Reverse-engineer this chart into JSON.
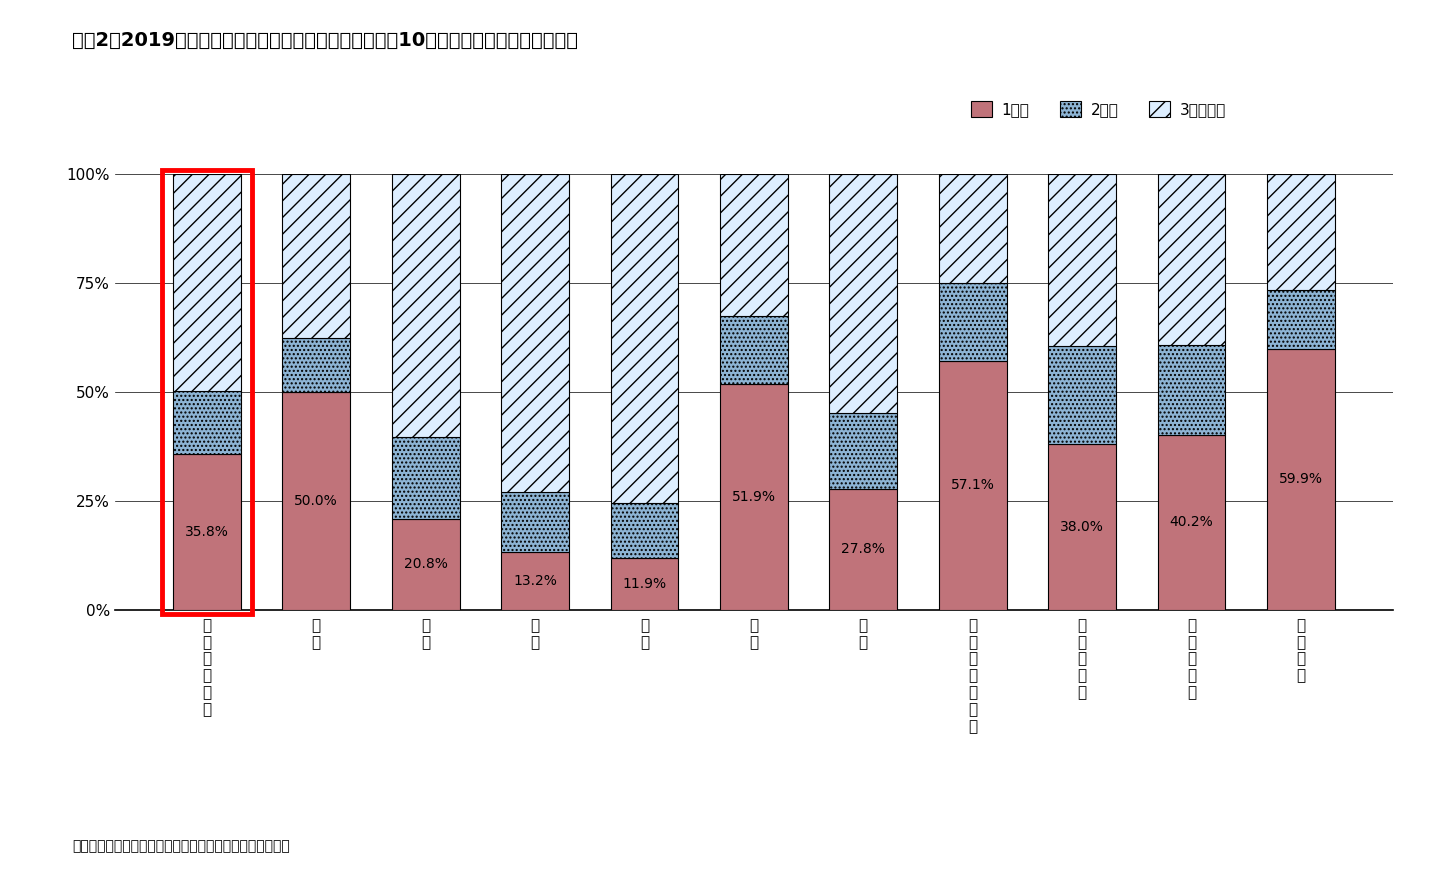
{
  "title": "図表2　2019年の国籍・地域別の訪日回数の割合（上位10か国・地域と全国籍・地域）",
  "categories": [
    "全国籍・地域",
    "中国",
    "韓国",
    "台湾",
    "香港",
    "米国",
    "タイ",
    "オーストラリア",
    "フィリピン",
    "マレーシア",
    "ベトナム"
  ],
  "first_visit": [
    35.8,
    50.0,
    20.8,
    13.2,
    11.9,
    51.9,
    27.8,
    57.1,
    38.0,
    40.2,
    59.9
  ],
  "second_visit": [
    14.4,
    12.5,
    18.9,
    13.8,
    12.7,
    15.5,
    17.3,
    18.0,
    22.5,
    20.5,
    13.6
  ],
  "third_plus": [
    49.8,
    37.5,
    60.3,
    73.0,
    75.4,
    32.6,
    54.9,
    24.9,
    39.5,
    39.3,
    26.5
  ],
  "color_first": "#c0737a",
  "color_second": "#8db4d4",
  "color_third": "#ddeeff",
  "ylabel_ticks": [
    "0%",
    "25%",
    "50%",
    "75%",
    "100%"
  ],
  "yticks": [
    0,
    25,
    50,
    75,
    100
  ],
  "legend_labels": [
    "1回目",
    "2回目",
    "3回目以上"
  ],
  "source_text": "（資料）観光庁の公表をもとにニッセイ基礎研究所が作成",
  "highlight_bar_index": 0,
  "background_color": "#ffffff",
  "bar_width": 0.62
}
